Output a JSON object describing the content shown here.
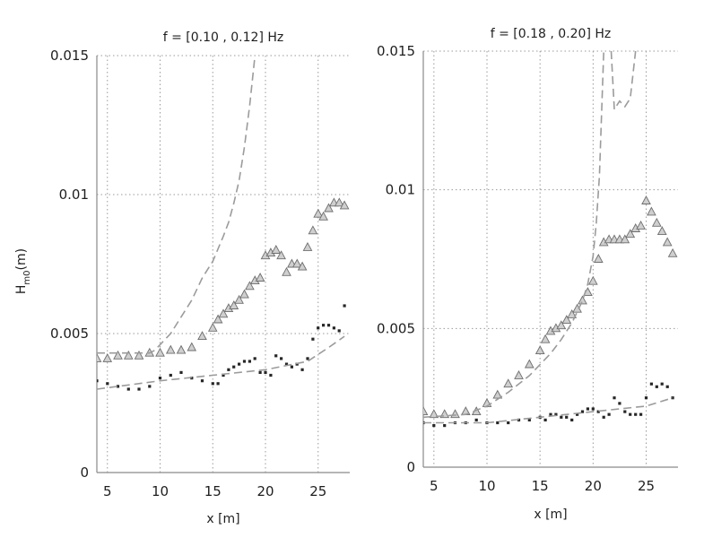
{
  "chart_data": [
    {
      "type": "scatter",
      "title": "f = [0.10 , 0.12] Hz",
      "xlabel": "x [m]",
      "ylabel": "H",
      "ylabel_sub": "m0",
      "ylabel_unit": "(m)",
      "xlim": [
        4,
        28
      ],
      "ylim": [
        0,
        0.015
      ],
      "xticks": [
        5,
        10,
        15,
        20,
        25
      ],
      "yticks": [
        0,
        0.005,
        0.01,
        0.015
      ],
      "xtick_labels": [
        "5",
        "10",
        "15",
        "20",
        "25"
      ],
      "ytick_labels": [
        "0",
        "0.005",
        "0.01",
        "0.015"
      ],
      "grid": true,
      "series": [
        {
          "marker": "triangle",
          "x": [
            4,
            5,
            6,
            7,
            8,
            9,
            10,
            11,
            12,
            13,
            14,
            15,
            15.5,
            16,
            16.5,
            17,
            17.5,
            18,
            18.5,
            19,
            19.5,
            20,
            20.5,
            21,
            21.5,
            22,
            22.5,
            23,
            23.5,
            24,
            24.5,
            25,
            25.5,
            26,
            26.5,
            27,
            27.5
          ],
          "y": [
            0.0041,
            0.0041,
            0.0042,
            0.0042,
            0.0042,
            0.0043,
            0.0043,
            0.0044,
            0.0044,
            0.0045,
            0.0049,
            0.0052,
            0.0055,
            0.0057,
            0.0059,
            0.006,
            0.0062,
            0.0064,
            0.0067,
            0.0069,
            0.007,
            0.0078,
            0.0079,
            0.008,
            0.0078,
            0.0072,
            0.0075,
            0.0075,
            0.0074,
            0.0081,
            0.0087,
            0.0093,
            0.0092,
            0.0095,
            0.0097,
            0.0097,
            0.0096
          ]
        },
        {
          "marker": "dot",
          "x": [
            4,
            5,
            6,
            7,
            8,
            9,
            10,
            11,
            12,
            13,
            14,
            15,
            15.5,
            16,
            16.5,
            17,
            17.5,
            18,
            18.5,
            19,
            19.5,
            20,
            20.5,
            21,
            21.5,
            22,
            22.5,
            23,
            23.5,
            24,
            24.5,
            25,
            25.5,
            26,
            26.5,
            27,
            27.5
          ],
          "y": [
            0.0033,
            0.0032,
            0.0031,
            0.003,
            0.003,
            0.0031,
            0.0034,
            0.0035,
            0.0036,
            0.0034,
            0.0033,
            0.0032,
            0.0032,
            0.0035,
            0.0037,
            0.0038,
            0.0039,
            0.004,
            0.004,
            0.0041,
            0.0036,
            0.0036,
            0.0035,
            0.0042,
            0.0041,
            0.0039,
            0.0038,
            0.0039,
            0.0037,
            0.0041,
            0.0048,
            0.0052,
            0.0053,
            0.0053,
            0.0052,
            0.0051,
            0.006
          ]
        },
        {
          "marker": "dashed-line",
          "x": [
            4,
            8,
            9,
            9.5,
            10,
            11,
            12,
            13,
            14,
            15,
            16,
            16.5,
            17,
            17.5,
            18,
            18.5,
            19
          ],
          "y": [
            0.0043,
            0.0043,
            0.0043,
            0.0044,
            0.0046,
            0.005,
            0.0056,
            0.0062,
            0.007,
            0.0076,
            0.0085,
            0.009,
            0.0097,
            0.0105,
            0.0117,
            0.0132,
            0.015
          ]
        },
        {
          "marker": "dashed-line",
          "x": [
            4,
            10,
            15,
            20,
            24,
            26,
            27.5
          ],
          "y": [
            0.003,
            0.0033,
            0.0035,
            0.0037,
            0.004,
            0.0045,
            0.0049
          ]
        }
      ]
    },
    {
      "type": "scatter",
      "title": "f = [0.18 , 0.20] Hz",
      "xlabel": "x [m]",
      "xlim": [
        4,
        28
      ],
      "ylim": [
        0,
        0.015
      ],
      "xticks": [
        5,
        10,
        15,
        20,
        25
      ],
      "yticks": [
        0,
        0.005,
        0.01,
        0.015
      ],
      "xtick_labels": [
        "5",
        "10",
        "15",
        "20",
        "25"
      ],
      "ytick_labels": [
        "0",
        "0.005",
        "0.01",
        "0.015"
      ],
      "grid": true,
      "series": [
        {
          "marker": "triangle",
          "x": [
            4,
            5,
            6,
            7,
            8,
            9,
            10,
            11,
            12,
            13,
            14,
            15,
            15.5,
            16,
            16.5,
            17,
            17.5,
            18,
            18.5,
            19,
            19.5,
            20,
            20.5,
            21,
            21.5,
            22,
            22.5,
            23,
            23.5,
            24,
            24.5,
            25,
            25.5,
            26,
            26.5,
            27,
            27.5
          ],
          "y": [
            0.002,
            0.0019,
            0.0019,
            0.0019,
            0.002,
            0.002,
            0.0023,
            0.0026,
            0.003,
            0.0033,
            0.0037,
            0.0042,
            0.0046,
            0.0049,
            0.005,
            0.0051,
            0.0053,
            0.0055,
            0.0057,
            0.006,
            0.0063,
            0.0067,
            0.0075,
            0.0081,
            0.0082,
            0.0082,
            0.0082,
            0.0082,
            0.0084,
            0.0086,
            0.0087,
            0.0096,
            0.0092,
            0.0088,
            0.0085,
            0.0081,
            0.0077
          ]
        },
        {
          "marker": "dot",
          "x": [
            4,
            5,
            6,
            7,
            8,
            9,
            10,
            11,
            12,
            13,
            14,
            15,
            15.5,
            16,
            16.5,
            17,
            17.5,
            18,
            18.5,
            19,
            19.5,
            20,
            20.5,
            21,
            21.5,
            22,
            22.5,
            23,
            23.5,
            24,
            24.5,
            25,
            25.5,
            26,
            26.5,
            27,
            27.5
          ],
          "y": [
            0.0016,
            0.0015,
            0.0015,
            0.0016,
            0.0016,
            0.0017,
            0.0016,
            0.0016,
            0.0016,
            0.0017,
            0.0017,
            0.0018,
            0.0017,
            0.0019,
            0.0019,
            0.0018,
            0.0018,
            0.0017,
            0.0019,
            0.002,
            0.0021,
            0.0021,
            0.002,
            0.0018,
            0.0019,
            0.0025,
            0.0023,
            0.002,
            0.0019,
            0.0019,
            0.0019,
            0.0025,
            0.003,
            0.0029,
            0.003,
            0.0029,
            0.0025
          ]
        },
        {
          "marker": "dashed-line",
          "x": [
            4,
            8,
            10,
            12,
            14,
            15,
            16,
            17,
            18,
            18.5,
            19,
            19.5,
            20,
            20.3,
            20.6,
            21
          ],
          "y": [
            0.0018,
            0.0019,
            0.0022,
            0.0027,
            0.0033,
            0.0037,
            0.0041,
            0.0046,
            0.0052,
            0.0056,
            0.006,
            0.0066,
            0.0076,
            0.0088,
            0.0105,
            0.015
          ]
        },
        {
          "marker": "dashed-line",
          "x": [
            21.7,
            22,
            22.5,
            23,
            23.5,
            24
          ],
          "y": [
            0.015,
            0.0129,
            0.0132,
            0.013,
            0.0133,
            0.015
          ]
        },
        {
          "marker": "dashed-line",
          "x": [
            4,
            10,
            15,
            20,
            25,
            27.5
          ],
          "y": [
            0.0016,
            0.0016,
            0.0018,
            0.002,
            0.0022,
            0.0025
          ]
        }
      ]
    }
  ]
}
